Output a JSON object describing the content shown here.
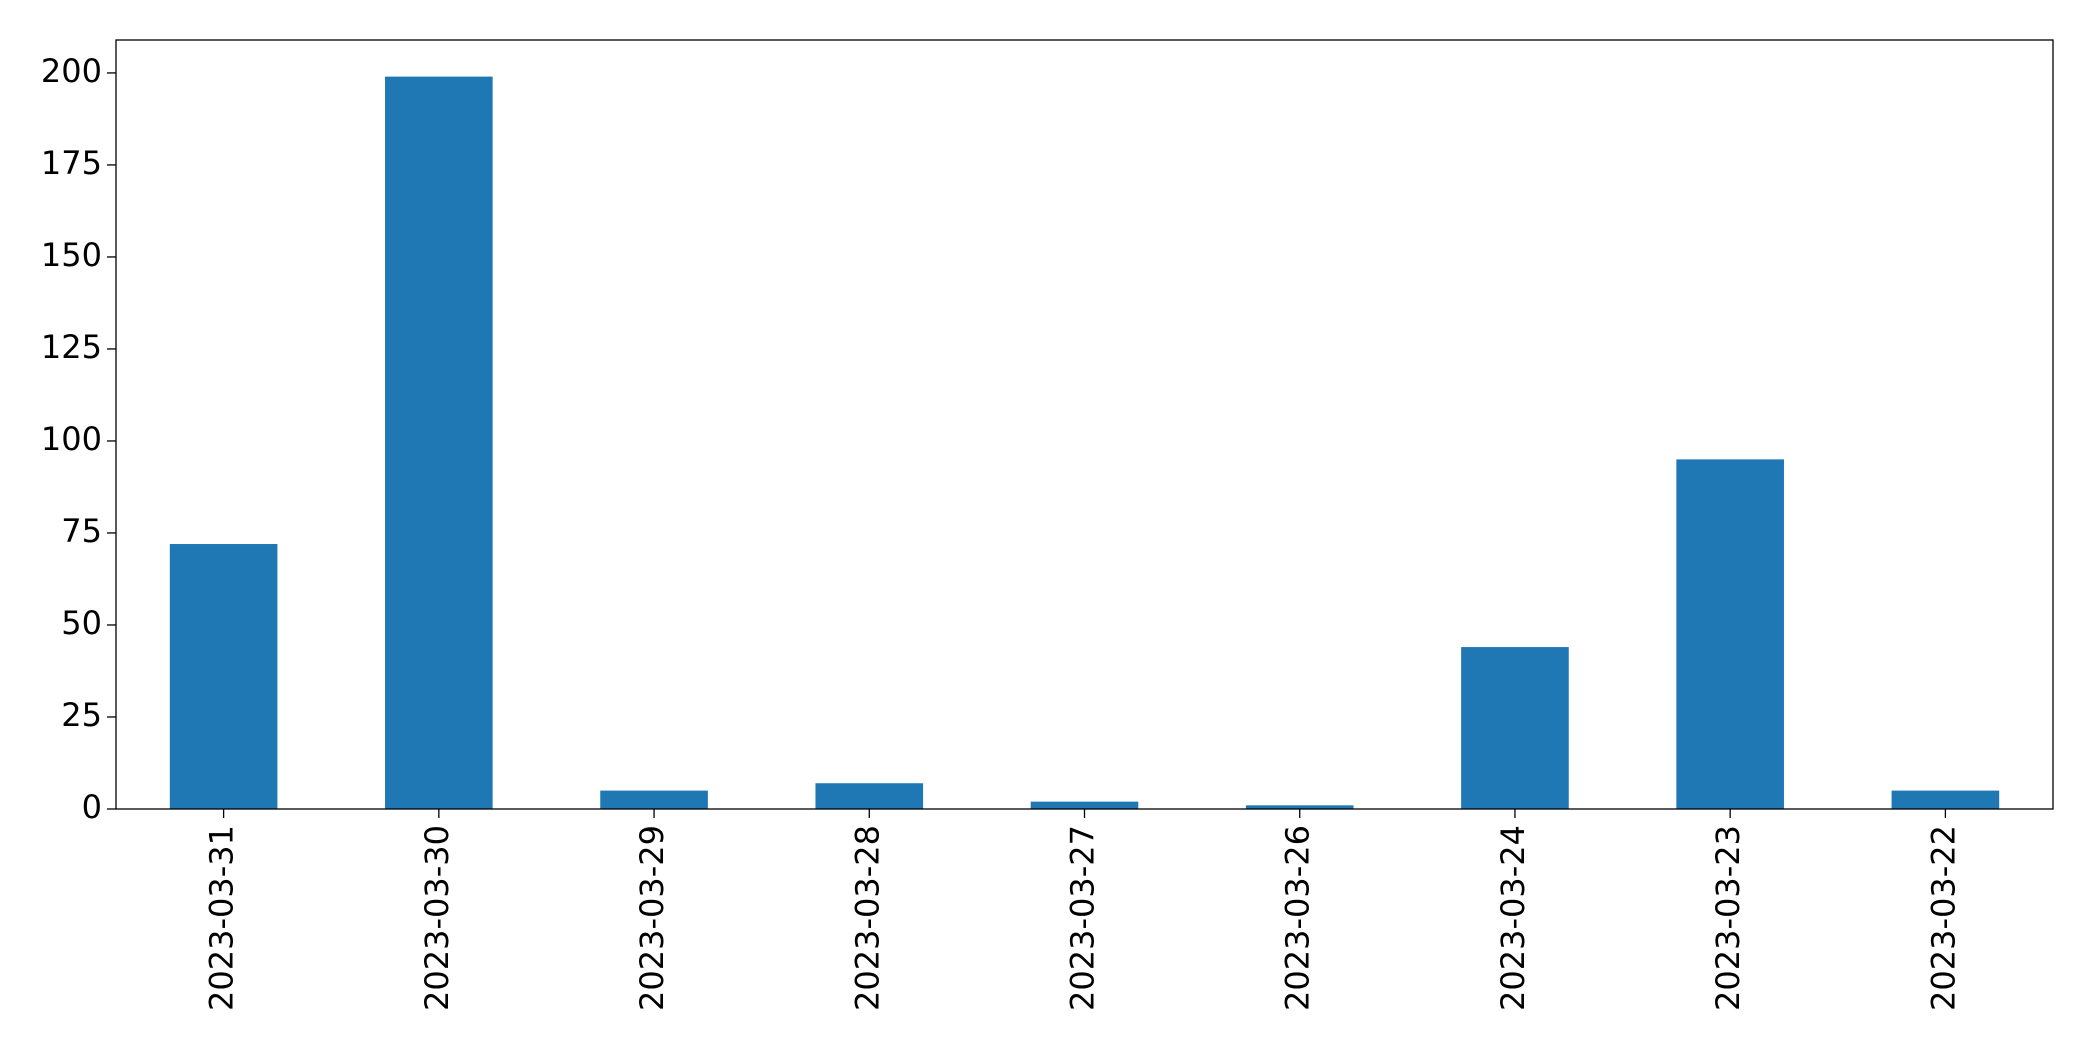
{
  "chart_data": {
    "type": "bar",
    "categories": [
      "2023-03-31",
      "2023-03-30",
      "2023-03-29",
      "2023-03-28",
      "2023-03-27",
      "2023-03-26",
      "2023-03-24",
      "2023-03-23",
      "2023-03-22"
    ],
    "values": [
      72,
      199,
      5,
      7,
      2,
      1,
      44,
      95,
      5
    ],
    "color": "#1f77b4",
    "ylim": [
      0,
      208.95
    ],
    "yticks": [
      0,
      25,
      50,
      75,
      100,
      125,
      150,
      175,
      200
    ],
    "grid": false
  }
}
